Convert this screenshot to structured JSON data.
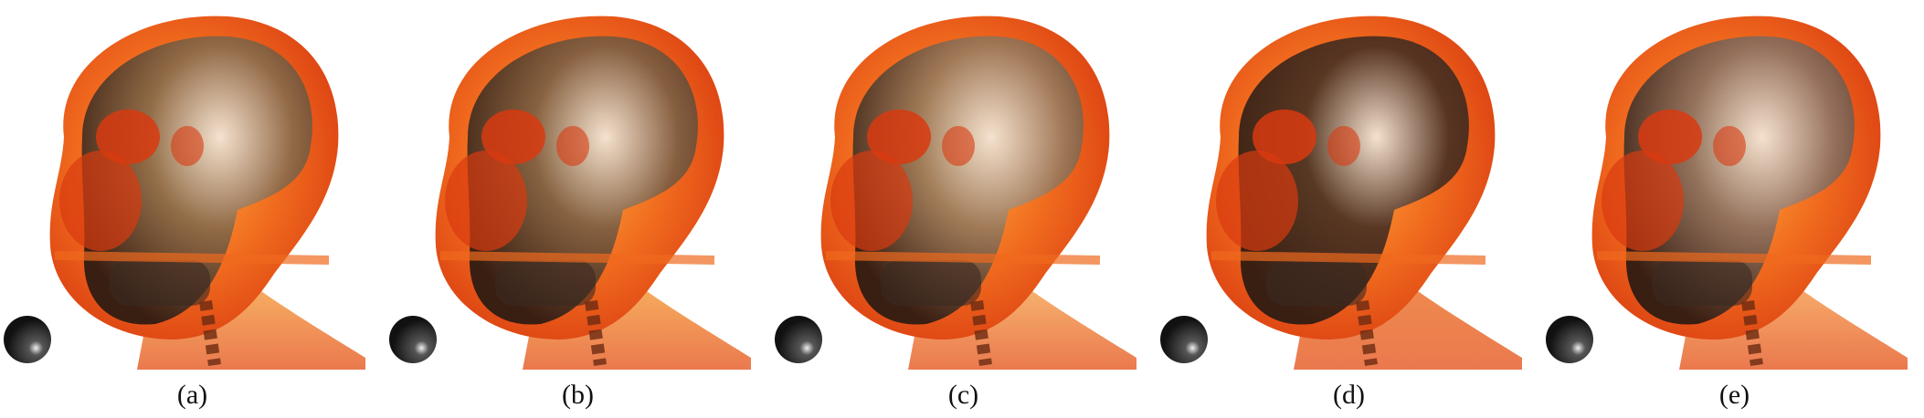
{
  "figure": {
    "panels": [
      {
        "label": "(a)",
        "skull_tone": "#8a6a4a",
        "glow": "#ffd060"
      },
      {
        "label": "(b)",
        "skull_tone": "#7d5e42",
        "glow": "#ffcc55"
      },
      {
        "label": "(c)",
        "skull_tone": "#9a7a5c",
        "glow": "#ffd878"
      },
      {
        "label": "(d)",
        "skull_tone": "#4a3022",
        "glow": "#f08a3a"
      },
      {
        "label": "(e)",
        "skull_tone": "#8c7060",
        "glow": "#ffc870"
      }
    ],
    "colors": {
      "flesh_dark": "#d83a10",
      "flesh_mid": "#f06a1e",
      "flesh_light": "#ffb040",
      "sphere": "#111111"
    }
  }
}
